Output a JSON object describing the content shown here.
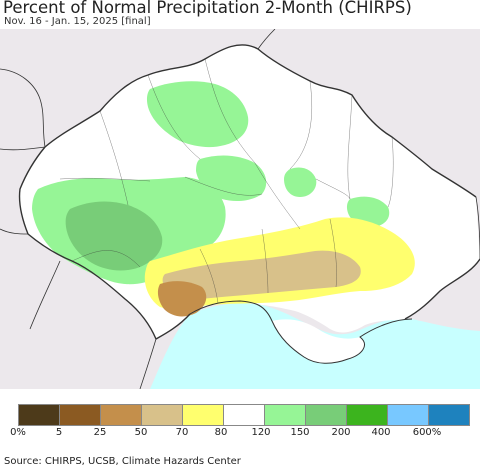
{
  "title": "Percent of Normal Precipitation 2-Month (CHIRPS)",
  "subtitle": "Nov. 16 - Jan. 15, 2025 [final]",
  "legend": {
    "colors": [
      "#4d3a1a",
      "#8b5a22",
      "#c48f4b",
      "#d8c18a",
      "#ffff6e",
      "#ffffff",
      "#96f596",
      "#78cd78",
      "#3cb41e",
      "#78c8ff",
      "#1e82be"
    ],
    "labels": [
      "0%",
      "5",
      "25",
      "50",
      "70",
      "80",
      "120",
      "150",
      "200",
      "400",
      "600%"
    ]
  },
  "map": {
    "colors": {
      "neighbor": "#ece8ec",
      "sea": "#c8ffff",
      "normal": "#ffffff",
      "wet": "#96f596",
      "wetter": "#78cd78",
      "dry": "#ffff6e",
      "drier": "#d8c18a",
      "dry_brown": "#c48f4b",
      "border": "#333333"
    }
  },
  "source": "Source: CHIRPS, UCSB, Climate Hazards Center"
}
